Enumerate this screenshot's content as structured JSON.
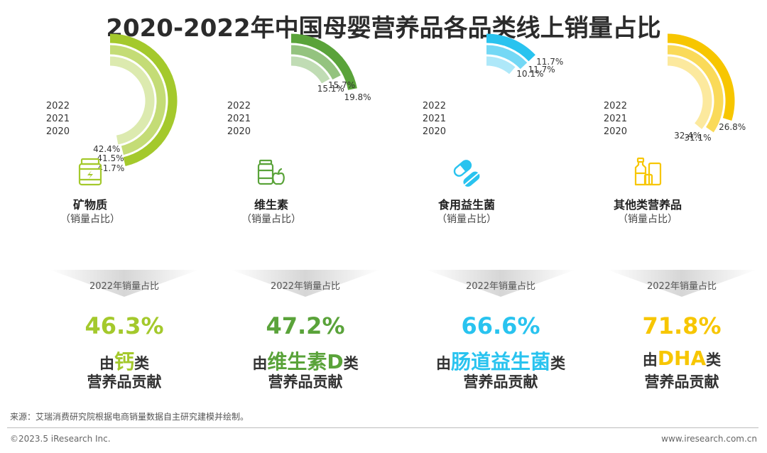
{
  "title": "2020-2022年中国母婴营养品各品类线上销量占比",
  "chart_data": [
    {
      "type": "radial-bar",
      "category": "矿物质",
      "subtitle": "（销量占比）",
      "series": [
        {
          "name": "2022",
          "value": 41.7,
          "label": "41.7%"
        },
        {
          "name": "2021",
          "value": 41.5,
          "label": "41.5%"
        },
        {
          "name": "2020",
          "value": 42.4,
          "label": "42.4%"
        }
      ],
      "color": "#a4c92c",
      "share_label": "2022年销量占比",
      "highlight_pct": "46.3%",
      "prefix": "由",
      "highlight": "钙",
      "suffix": "类",
      "line2": "营养品贡献",
      "icon": "supplement-jar-icon"
    },
    {
      "type": "radial-bar",
      "category": "维生素",
      "subtitle": "（销量占比）",
      "series": [
        {
          "name": "2022",
          "value": 19.8,
          "label": "19.8%"
        },
        {
          "name": "2021",
          "value": 15.7,
          "label": "15.7%"
        },
        {
          "name": "2020",
          "value": 15.1,
          "label": "15.1%"
        }
      ],
      "color": "#5aa33a",
      "share_label": "2022年销量占比",
      "highlight_pct": "47.2%",
      "prefix": "由",
      "highlight": "维生素D",
      "suffix": "类",
      "line2": "营养品贡献",
      "icon": "vitamin-bottle-apple-icon"
    },
    {
      "type": "radial-bar",
      "category": "食用益生菌",
      "subtitle": "（销量占比）",
      "series": [
        {
          "name": "2022",
          "value": 11.7,
          "label": "11.7%"
        },
        {
          "name": "2021",
          "value": 11.7,
          "label": "11.7%"
        },
        {
          "name": "2020",
          "value": 10.1,
          "label": "10.1%"
        }
      ],
      "color": "#29c3ef",
      "share_label": "2022年销量占比",
      "highlight_pct": "66.6%",
      "prefix": "由",
      "highlight": "肠道益生菌",
      "suffix": "类",
      "line2": "营养品贡献",
      "icon": "capsule-pill-icon"
    },
    {
      "type": "radial-bar",
      "category": "其他类营养品",
      "subtitle": "（销量占比）",
      "series": [
        {
          "name": "2022",
          "value": 26.8,
          "label": "26.8%"
        },
        {
          "name": "2021",
          "value": 31.1,
          "label": "31.1%"
        },
        {
          "name": "2020",
          "value": 32.4,
          "label": "32.4%"
        }
      ],
      "color": "#f7c600",
      "share_label": "2022年销量占比",
      "highlight_pct": "71.8%",
      "prefix": "由",
      "highlight": "DHA",
      "suffix": "类",
      "line2": "营养品贡献",
      "icon": "bottles-box-icon"
    }
  ],
  "footer": {
    "source": "来源：艾瑞消费研究院根据电商销量数据自主研究建模并绘制。",
    "copyright": "©2023.5 iResearch Inc.",
    "website": "www.iresearch.com.cn"
  }
}
